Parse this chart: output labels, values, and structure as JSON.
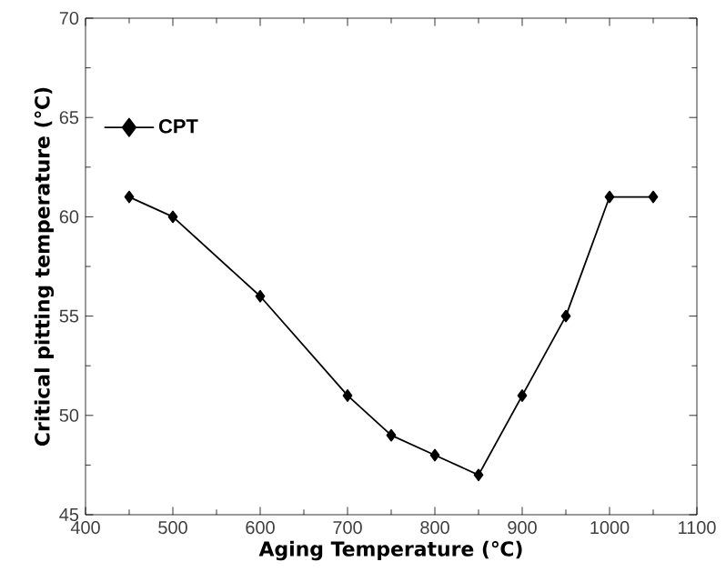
{
  "chart_data": {
    "type": "line",
    "xlabel": "Aging Temperature (℃)",
    "ylabel": "Critical pitting temperature (℃)",
    "x": [
      450,
      500,
      600,
      700,
      750,
      800,
      850,
      900,
      950,
      1000,
      1050
    ],
    "series": [
      {
        "name": "CPT",
        "color": "#000000",
        "values": [
          61,
          60,
          56,
          51,
          49,
          48,
          47,
          51,
          55,
          61,
          61
        ]
      }
    ],
    "xlim": [
      400,
      1100
    ],
    "xticks": [
      400,
      500,
      600,
      700,
      800,
      900,
      1000,
      1100
    ],
    "ylim": [
      45,
      70
    ],
    "yticks": [
      45,
      50,
      55,
      60,
      65,
      70
    ],
    "legend": "top left",
    "marker": "diamond",
    "line_style": "solid",
    "grid": false
  }
}
